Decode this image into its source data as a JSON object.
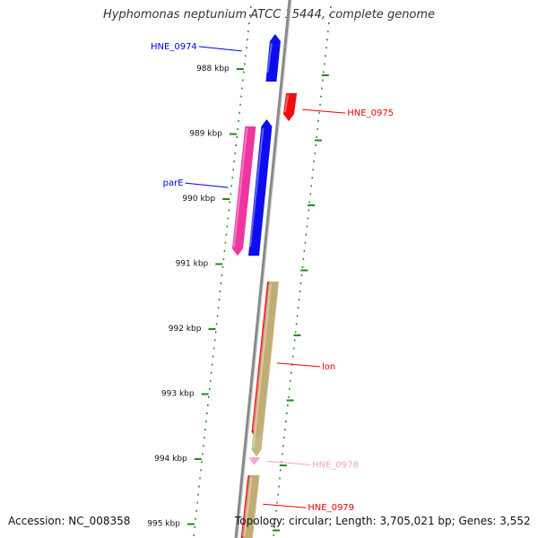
{
  "title": "Hyphomonas neptunium ATCC 15444, complete genome",
  "footer": {
    "accession": "Accession: NC_008358",
    "summary": "Topology: circular; Length: 3,705,021 bp; Genes: 3,552"
  },
  "colors": {
    "plus_strand": "#0000ee",
    "minus_strand": "#ee0000",
    "pink_gene": "#ee2a9a",
    "khaki_gene": "#bdb57a",
    "light_pink_gene": "#f4a0cc",
    "tick": "#1e8a1e",
    "backbone": "#8a8a8a"
  },
  "axis": {
    "unit": "kbp",
    "ticks": [
      {
        "kbp": 988,
        "label": "988 kbp"
      },
      {
        "kbp": 989,
        "label": "989 kbp"
      },
      {
        "kbp": 990,
        "label": "990 kbp"
      },
      {
        "kbp": 991,
        "label": "991 kbp"
      },
      {
        "kbp": 992,
        "label": "992 kbp"
      },
      {
        "kbp": 993,
        "label": "993 kbp"
      },
      {
        "kbp": 994,
        "label": "994 kbp"
      },
      {
        "kbp": 995,
        "label": "995 kbp"
      }
    ]
  },
  "genes": [
    {
      "name": "HNE_0974",
      "start_kbp": 987.6,
      "end_kbp": 988.22,
      "strand": "+",
      "color": "plus_strand",
      "label_side": "left",
      "label_kbp": 987.75
    },
    {
      "name": "HNE_0975",
      "start_kbp": 988.4,
      "end_kbp": 988.83,
      "strand": "-",
      "color": "minus_strand",
      "label_side": "right",
      "label_kbp": 988.65
    },
    {
      "name": "",
      "start_kbp": 988.91,
      "end_kbp": 990.9,
      "strand": "-",
      "color": "pink_gene",
      "track": "outer"
    },
    {
      "name": "parE",
      "start_kbp": 988.91,
      "end_kbp": 990.9,
      "strand": "+",
      "color": "plus_strand",
      "label_side": "left",
      "label_kbp": 989.85
    },
    {
      "name": "lon",
      "start_kbp": 991.3,
      "end_kbp": 993.72,
      "strand": "-",
      "color": "minus_strand",
      "label_side": "right",
      "label_kbp": 992.55
    },
    {
      "name": "",
      "start_kbp": 991.3,
      "end_kbp": 993.99,
      "strand": "-",
      "color": "khaki_gene",
      "track": "inner"
    },
    {
      "name": "HNE_0978",
      "start_kbp": 994.0,
      "end_kbp": 994.12,
      "strand": "-",
      "color": "light_pink_gene",
      "label_side": "right",
      "label_kbp": 994.06
    },
    {
      "name": "HNE_0979",
      "start_kbp": 994.28,
      "end_kbp": 995.35,
      "strand": "-",
      "color": "minus_strand",
      "label_side": "right",
      "label_kbp": 994.72
    },
    {
      "name": "",
      "start_kbp": 994.28,
      "end_kbp": 995.35,
      "strand": "-",
      "color": "khaki_gene",
      "track": "inner"
    }
  ]
}
